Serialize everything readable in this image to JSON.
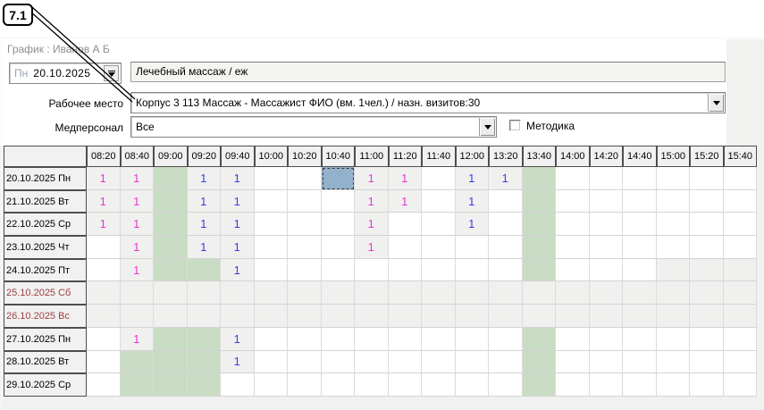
{
  "callout": {
    "label": "7.1"
  },
  "header": {
    "title": "График : Иванов А Б"
  },
  "toolbar": {
    "date_field": {
      "day_abbr": "Пн",
      "date": "20.10.2025"
    },
    "service_value": "Лечебный массаж / еж",
    "workplace": {
      "label": "Рабочее место",
      "value": "Корпус 3 113 Массаж - Массажист ФИО  (вм. 1чел.) / назн. визитов:30"
    },
    "staff": {
      "label": "Медперсонал",
      "value": "Все"
    },
    "metodika": {
      "label": "Методика",
      "checked": false
    }
  },
  "grid": {
    "time_columns": [
      "08:20",
      "08:40",
      "09:00",
      "09:20",
      "09:40",
      "10:00",
      "10:20",
      "10:40",
      "11:00",
      "11:20",
      "11:40",
      "12:00",
      "13:20",
      "13:40",
      "14:00",
      "14:20",
      "14:40",
      "15:00",
      "15:20",
      "15:40"
    ],
    "cell_legend": {
      "": "empty white slot",
      "g": "gray blocked/occupied slot",
      "G": "green unavailable slot",
      "S": "selected slot (blue highlight)",
      "m1": "1 visit (magenta) on gray slot",
      "b1": "1 visit (blue) on gray slot"
    },
    "rows": [
      {
        "label": "20.10.2025 Пн",
        "weekend": false,
        "cells": [
          "m1",
          "m1",
          "G",
          "b1",
          "b1",
          "",
          "",
          "S",
          "m1",
          "m1",
          "",
          "b1",
          "b1",
          "G",
          "",
          "",
          "",
          "",
          "",
          ""
        ]
      },
      {
        "label": "21.10.2025 Вт",
        "weekend": false,
        "cells": [
          "m1",
          "m1",
          "G",
          "b1",
          "b1",
          "",
          "",
          "",
          "m1",
          "m1",
          "",
          "b1",
          "",
          "G",
          "",
          "",
          "",
          "",
          "",
          ""
        ]
      },
      {
        "label": "22.10.2025 Ср",
        "weekend": false,
        "cells": [
          "m1",
          "m1",
          "G",
          "b1",
          "b1",
          "",
          "",
          "",
          "m1",
          "",
          "",
          "b1",
          "",
          "G",
          "",
          "",
          "",
          "",
          "",
          ""
        ]
      },
      {
        "label": "23.10.2025 Чт",
        "weekend": false,
        "cells": [
          "",
          "m1",
          "G",
          "b1",
          "b1",
          "",
          "",
          "",
          "m1",
          "",
          "",
          "",
          "",
          "G",
          "",
          "",
          "",
          "",
          "",
          ""
        ]
      },
      {
        "label": "24.10.2025 Пт",
        "weekend": false,
        "cells": [
          "",
          "m1",
          "G",
          "G",
          "b1",
          "",
          "",
          "",
          "",
          "",
          "",
          "",
          "",
          "G",
          "",
          "",
          "",
          "g",
          "g",
          "g"
        ]
      },
      {
        "label": "25.10.2025 Сб",
        "weekend": true,
        "cells": [
          "g",
          "g",
          "g",
          "g",
          "g",
          "g",
          "g",
          "g",
          "g",
          "g",
          "g",
          "g",
          "g",
          "g",
          "g",
          "g",
          "g",
          "g",
          "g",
          "g"
        ]
      },
      {
        "label": "26.10.2025 Вс",
        "weekend": true,
        "cells": [
          "g",
          "g",
          "g",
          "g",
          "g",
          "g",
          "g",
          "g",
          "g",
          "g",
          "g",
          "g",
          "g",
          "g",
          "g",
          "g",
          "g",
          "g",
          "g",
          "g"
        ]
      },
      {
        "label": "27.10.2025 Пн",
        "weekend": false,
        "cells": [
          "",
          "m1",
          "G",
          "G",
          "b1",
          "",
          "",
          "",
          "",
          "",
          "",
          "",
          "",
          "G",
          "",
          "",
          "",
          "",
          "",
          ""
        ]
      },
      {
        "label": "28.10.2025 Вт",
        "weekend": false,
        "cells": [
          "",
          "G",
          "G",
          "G",
          "b1",
          "",
          "",
          "",
          "",
          "",
          "",
          "",
          "",
          "G",
          "",
          "",
          "",
          "",
          "",
          ""
        ]
      },
      {
        "label": "29.10.2025 Ср",
        "weekend": false,
        "cells": [
          "",
          "G",
          "G",
          "G",
          "",
          "",
          "",
          "",
          "",
          "",
          "",
          "",
          "",
          "G",
          "",
          "",
          "",
          "",
          "",
          ""
        ]
      }
    ]
  },
  "colors": {
    "magenta_count": "#ee32d4",
    "blue_count": "#3b3bea",
    "green_slot": "#c9dcc4",
    "gray_slot": "#f0f0ef",
    "selected_slot": "#94b1cc",
    "weekend_text": "#9e4040"
  }
}
